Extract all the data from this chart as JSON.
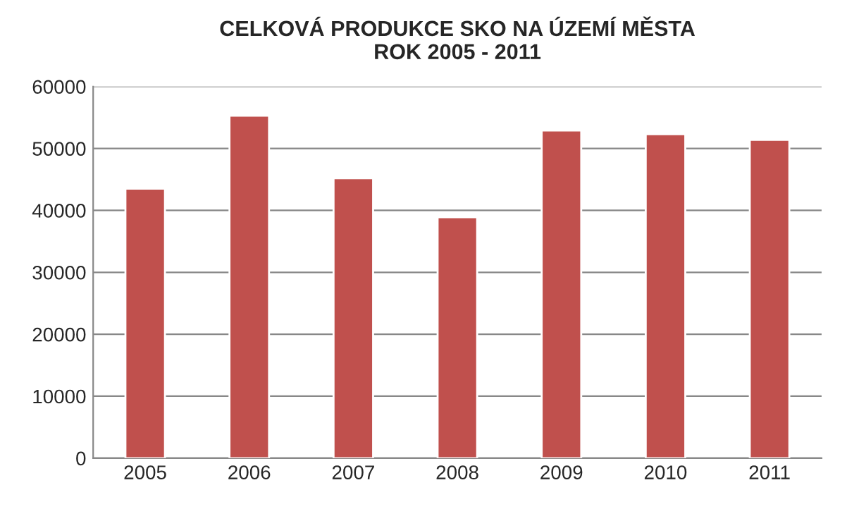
{
  "chart_data": {
    "type": "bar",
    "title": "CELKOVÁ PRODUKCE SKO NA ÚZEMÍ MĚSTA\nROK 2005 - 2011",
    "categories": [
      "2005",
      "2006",
      "2007",
      "2008",
      "2009",
      "2010",
      "2011"
    ],
    "values": [
      43500,
      55300,
      45200,
      38900,
      52900,
      52300,
      51400
    ],
    "color": "#c0504d",
    "ylim": [
      0,
      60000
    ],
    "yticks": [
      0,
      10000,
      20000,
      30000,
      40000,
      50000,
      60000
    ],
    "grid": "y"
  }
}
